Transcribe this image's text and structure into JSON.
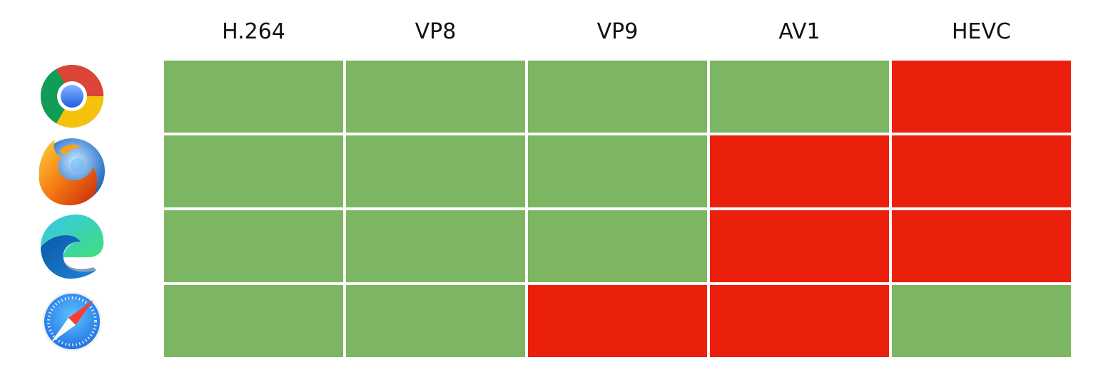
{
  "chart_data": {
    "type": "heatmap",
    "title": "",
    "columns": [
      "H.264",
      "VP8",
      "VP9",
      "AV1",
      "HEVC"
    ],
    "rows": [
      {
        "icon": "chrome-icon",
        "values": [
          1,
          1,
          1,
          1,
          0
        ]
      },
      {
        "icon": "firefox-icon",
        "values": [
          1,
          1,
          1,
          0,
          0
        ]
      },
      {
        "icon": "edge-icon",
        "values": [
          1,
          1,
          1,
          0,
          0
        ]
      },
      {
        "icon": "safari-icon",
        "values": [
          1,
          1,
          0,
          0,
          1
        ]
      }
    ],
    "colors": {
      "supported": "#7cb662",
      "unsupported": "#ea200c"
    }
  }
}
